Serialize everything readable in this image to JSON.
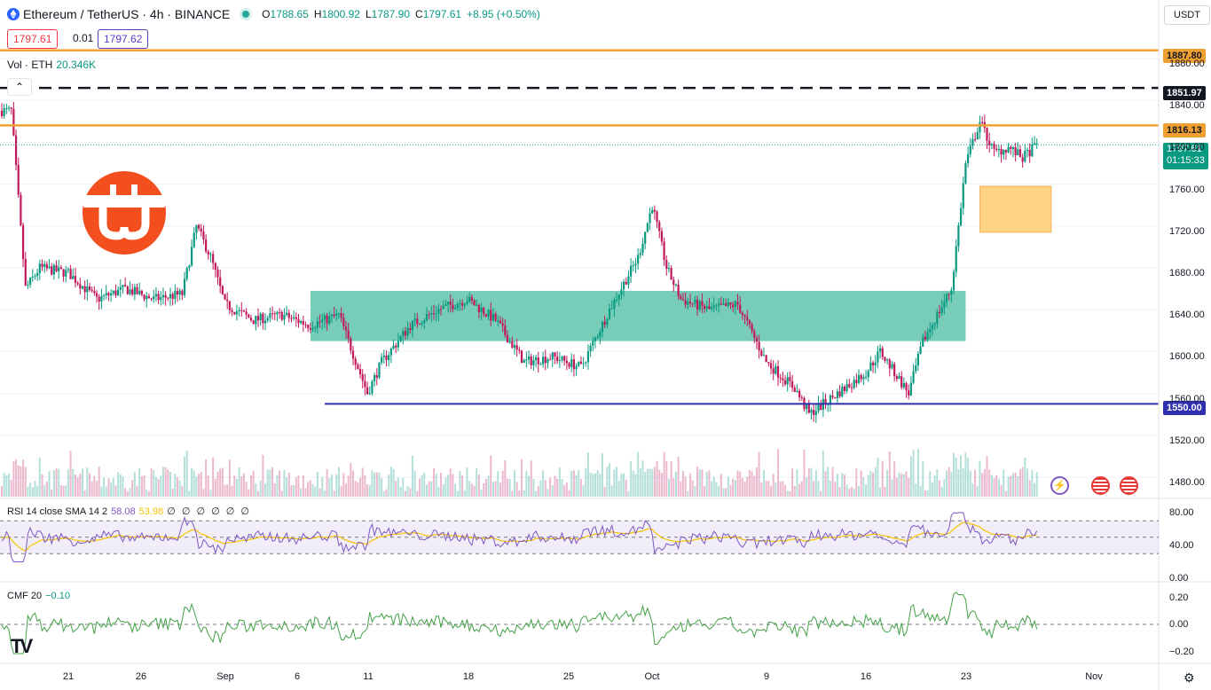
{
  "header": {
    "symbol": "Ethereum / TetherUS · 4h · BINANCE",
    "open_label": "O",
    "open": "1788.65",
    "high_label": "H",
    "high": "1800.92",
    "low_label": "L",
    "low": "1787.90",
    "close_label": "C",
    "close": "1797.61",
    "change": "+8.95 (+0.50%)"
  },
  "trade": {
    "sell": "1797.61",
    "spread": "0.01",
    "buy": "1797.62"
  },
  "volume": {
    "label": "Vol · ETH",
    "value": "20.346K"
  },
  "currency": "USDT",
  "price_tags": {
    "res_top": "1887.80",
    "dashed": "1851.97",
    "res_mid": "1816.13",
    "current": "1797.61",
    "countdown": "01:15:33",
    "support": "1550.00"
  },
  "y_axis": [
    "1880.00",
    "1840.00",
    "1800.00",
    "1760.00",
    "1720.00",
    "1680.00",
    "1640.00",
    "1600.00",
    "1560.00",
    "1520.00",
    "1480.00"
  ],
  "x_axis": [
    "21",
    "26",
    "Sep",
    "6",
    "11",
    "18",
    "25",
    "Oct",
    "9",
    "16",
    "23",
    "Nov"
  ],
  "rsi": {
    "label": "RSI 14 close SMA 14 2",
    "value": "58.08",
    "sma": "53.98",
    "extra": "∅ ∅ ∅ ∅ ∅ ∅",
    "axis": [
      "80.00",
      "40.00",
      "0.00"
    ]
  },
  "cmf": {
    "label": "CMF 20",
    "value": "−0.10",
    "axis": [
      "0.20",
      "0.00",
      "−0.20"
    ]
  },
  "colors": {
    "up": "#089981",
    "down": "#c2185b",
    "orange": "#f0a030",
    "navy": "#2f2fb0",
    "zone": "#5fc4ab",
    "box": "#ffc966"
  },
  "chart_data": {
    "type": "candlestick",
    "title": "Ethereum / TetherUS · 4h · BINANCE",
    "ylim": [
      1470,
      1895
    ],
    "levels": {
      "resistance": [
        1887.8,
        1816.13
      ],
      "dashed_resistance": 1851.97,
      "support": 1550.0,
      "current": 1797.61
    },
    "zones": [
      {
        "type": "demand",
        "from_date": "Sep 7",
        "to_date": "Oct 23",
        "low": 1610,
        "high": 1658
      },
      {
        "type": "pending",
        "from_date": "Oct 24",
        "to_date": "Oct 29",
        "low": 1714,
        "high": 1758
      }
    ],
    "price_path": [
      [
        "Aug 17",
        1830
      ],
      [
        "Aug 18",
        1660
      ],
      [
        "Aug 19",
        1680
      ],
      [
        "Aug 21",
        1675
      ],
      [
        "Aug 23",
        1650
      ],
      [
        "Aug 25",
        1660
      ],
      [
        "Aug 27",
        1650
      ],
      [
        "Aug 29",
        1655
      ],
      [
        "Aug 30",
        1720
      ],
      [
        "Aug 31",
        1690
      ],
      [
        "Sep 1",
        1645
      ],
      [
        "Sep 3",
        1630
      ],
      [
        "Sep 5",
        1635
      ],
      [
        "Sep 7",
        1625
      ],
      [
        "Sep 9",
        1635
      ],
      [
        "Sep 11",
        1560
      ],
      [
        "Sep 12",
        1590
      ],
      [
        "Sep 14",
        1625
      ],
      [
        "Sep 16",
        1640
      ],
      [
        "Sep 18",
        1650
      ],
      [
        "Sep 20",
        1630
      ],
      [
        "Sep 22",
        1590
      ],
      [
        "Sep 24",
        1595
      ],
      [
        "Sep 26",
        1585
      ],
      [
        "Sep 28",
        1640
      ],
      [
        "Sep 30",
        1690
      ],
      [
        "Oct 1",
        1740
      ],
      [
        "Oct 2",
        1680
      ],
      [
        "Oct 3",
        1650
      ],
      [
        "Oct 5",
        1640
      ],
      [
        "Oct 7",
        1645
      ],
      [
        "Oct 9",
        1590
      ],
      [
        "Oct 11",
        1565
      ],
      [
        "Oct 12",
        1540
      ],
      [
        "Oct 14",
        1560
      ],
      [
        "Oct 16",
        1580
      ],
      [
        "Oct 17",
        1600
      ],
      [
        "Oct 19",
        1560
      ],
      [
        "Oct 20",
        1610
      ],
      [
        "Oct 22",
        1660
      ],
      [
        "Oct 23",
        1780
      ],
      [
        "Oct 24",
        1820
      ],
      [
        "Oct 25",
        1790
      ],
      [
        "Oct 26",
        1795
      ],
      [
        "Oct 27",
        1785
      ],
      [
        "Oct 28",
        1797.61
      ]
    ]
  }
}
